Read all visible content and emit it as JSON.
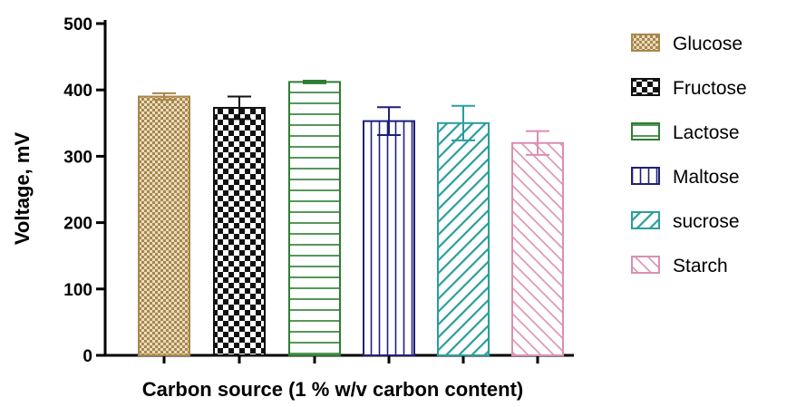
{
  "chart_data": {
    "type": "bar",
    "xlabel": "Carbon source (1 % w/v carbon content)",
    "ylabel": "Voltage, mV",
    "ylim": [
      0,
      500
    ],
    "yticks": [
      0,
      100,
      200,
      300,
      400,
      500
    ],
    "grid": false,
    "legend_position": "right",
    "categories": [
      "Glucose",
      "Fructose",
      "Lactose",
      "Maltose",
      "sucrose",
      "Starch"
    ],
    "values": [
      390,
      373,
      412,
      353,
      350,
      320
    ],
    "errors": [
      5,
      17,
      2,
      21,
      26,
      18
    ],
    "series_styles": [
      {
        "name": "Glucose",
        "pattern": "fine-checker",
        "color": "#a8874a"
      },
      {
        "name": "Fructose",
        "pattern": "checker",
        "color": "#111111"
      },
      {
        "name": "Lactose",
        "pattern": "horizontal",
        "color": "#2e7d32"
      },
      {
        "name": "Maltose",
        "pattern": "vertical",
        "color": "#1f1f7a"
      },
      {
        "name": "sucrose",
        "pattern": "diagonal-up",
        "color": "#2a9d9d"
      },
      {
        "name": "Starch",
        "pattern": "diagonal-down",
        "color": "#d98fb3"
      }
    ],
    "legend": [
      "Glucose",
      "Fructose",
      "Lactose",
      "Maltose",
      "sucrose",
      "Starch"
    ]
  }
}
